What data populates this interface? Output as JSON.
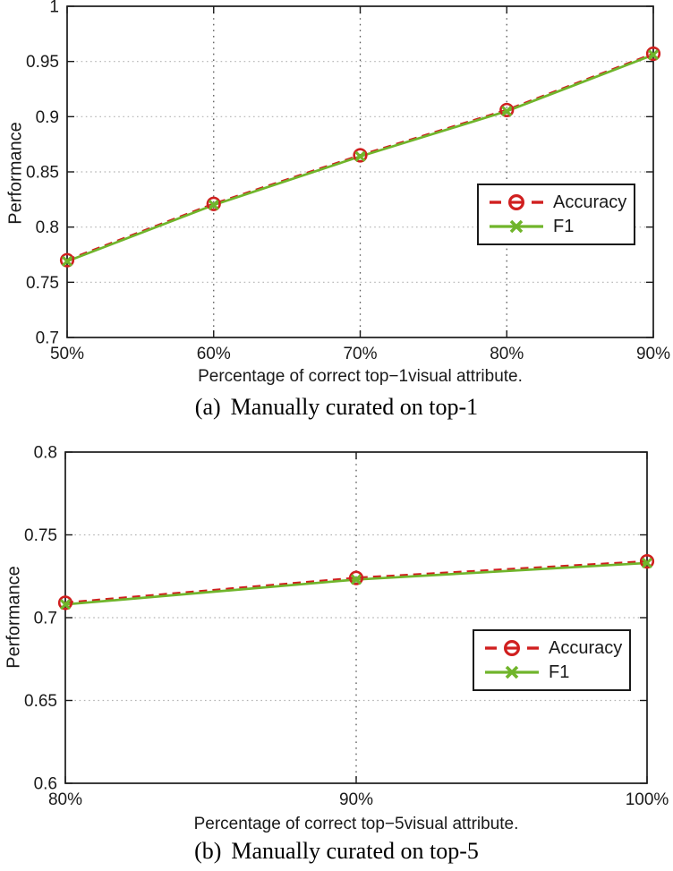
{
  "chart_data": [
    {
      "type": "line",
      "panel": "a",
      "caption": {
        "index": "(a)",
        "text": "Manually curated on top-1"
      },
      "xlabel": "Percentage of correct top−1visual attribute.",
      "ylabel": "Performance",
      "x": [
        50,
        60,
        70,
        80,
        90
      ],
      "x_tick_labels": [
        "50%",
        "60%",
        "70%",
        "80%",
        "90%"
      ],
      "xlim": [
        50,
        90
      ],
      "ylim": [
        0.7,
        1.0
      ],
      "y_ticks": [
        0.7,
        0.75,
        0.8,
        0.85,
        0.9,
        0.95,
        1
      ],
      "y_tick_labels": [
        "0.7",
        "0.75",
        "0.8",
        "0.85",
        "0.9",
        "0.95",
        "1"
      ],
      "grid": "dotted",
      "legend_position": "lower-right",
      "series": [
        {
          "name": "Accuracy",
          "color": "#d01f1f",
          "line_style": "dashed",
          "marker": "circle",
          "values": [
            0.77,
            0.821,
            0.865,
            0.906,
            0.957
          ]
        },
        {
          "name": "F1",
          "color": "#70b52b",
          "line_style": "solid",
          "marker": "x",
          "values": [
            0.769,
            0.82,
            0.864,
            0.905,
            0.956
          ]
        }
      ]
    },
    {
      "type": "line",
      "panel": "b",
      "caption": {
        "index": "(b)",
        "text": "Manually curated on top-5"
      },
      "xlabel": "Percentage of correct top−5visual attribute.",
      "ylabel": "Performance",
      "x": [
        80,
        90,
        100
      ],
      "x_tick_labels": [
        "80%",
        "90%",
        "100%"
      ],
      "xlim": [
        80,
        100
      ],
      "ylim": [
        0.6,
        0.8
      ],
      "y_ticks": [
        0.6,
        0.65,
        0.7,
        0.75,
        0.8
      ],
      "y_tick_labels": [
        "0.6",
        "0.65",
        "0.7",
        "0.75",
        "0.8"
      ],
      "grid": "dotted",
      "legend_position": "lower-right",
      "series": [
        {
          "name": "Accuracy",
          "color": "#d01f1f",
          "line_style": "dashed",
          "marker": "circle",
          "values": [
            0.709,
            0.724,
            0.734
          ]
        },
        {
          "name": "F1",
          "color": "#70b52b",
          "line_style": "solid",
          "marker": "x",
          "values": [
            0.708,
            0.723,
            0.733
          ]
        }
      ]
    }
  ]
}
